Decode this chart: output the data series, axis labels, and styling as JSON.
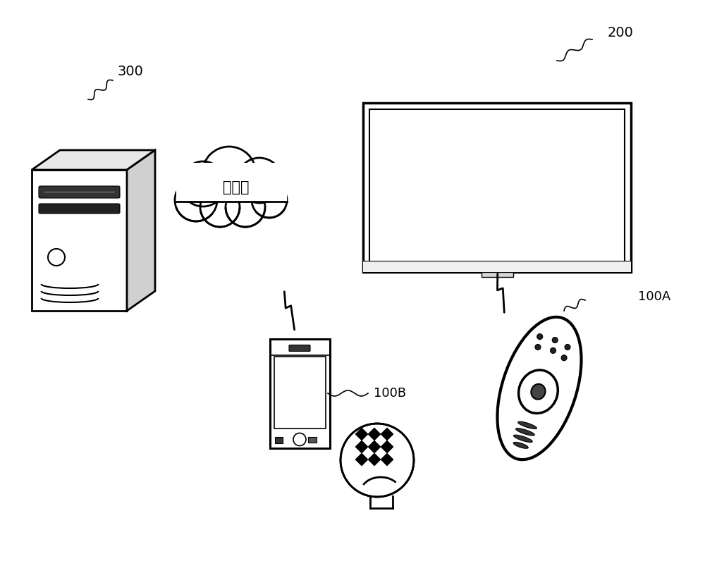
{
  "background_color": "#ffffff",
  "label_300": "300",
  "label_200": "200",
  "label_100A": "100A",
  "label_100B": "100B",
  "cloud_text": "互联网",
  "fig_width": 10.0,
  "fig_height": 7.96
}
